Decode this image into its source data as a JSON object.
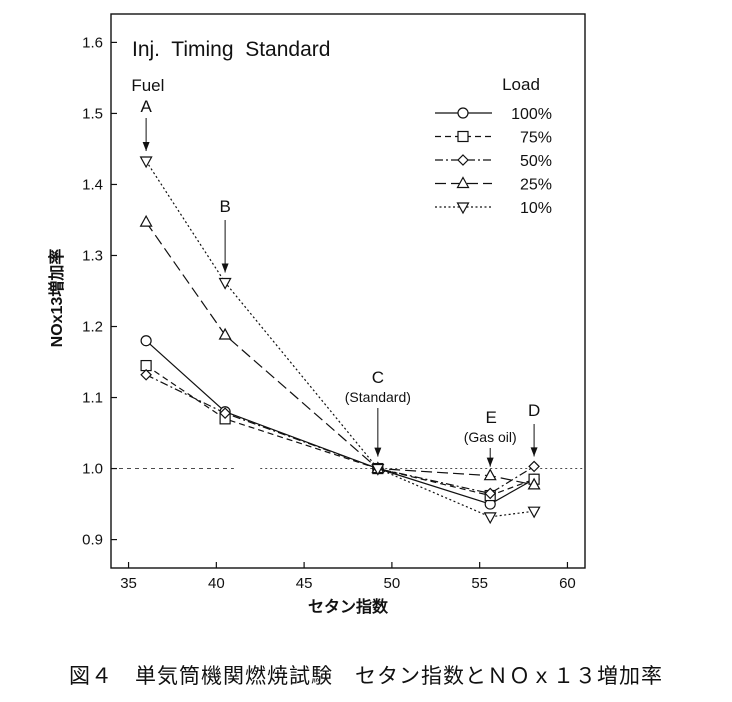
{
  "chart_data": {
    "type": "line",
    "title": "Inj.  Timing  Standard",
    "xlabel": "セタン指数",
    "ylabel": "NOx13増加率",
    "xlim": [
      34,
      61
    ],
    "ylim": [
      0.86,
      1.64
    ],
    "x_ticks": [
      35,
      40,
      45,
      50,
      55,
      60
    ],
    "y_ticks": [
      0.9,
      1.0,
      1.1,
      1.2,
      1.3,
      1.4,
      1.5,
      1.6
    ],
    "x_tick_labels": [
      "35",
      "40",
      "45",
      "50",
      "55",
      "60"
    ],
    "y_tick_labels": [
      "0.9",
      "1.0",
      "1.1",
      "1.2",
      "1.3",
      "1.4",
      "1.5",
      "1.6"
    ],
    "grid": false,
    "reference_line": 1.0,
    "legend_title": "Load",
    "legend_placement": "top-right",
    "series": [
      {
        "name": "100%",
        "marker": "circle",
        "dash": "solid",
        "x": [
          36,
          40.5,
          49.2,
          55.6,
          58.1
        ],
        "y": [
          1.18,
          1.08,
          1.0,
          0.95,
          0.985
        ]
      },
      {
        "name": "75%",
        "marker": "square",
        "dash": "dashed",
        "x": [
          36,
          40.5,
          49.2,
          55.6,
          58.1
        ],
        "y": [
          1.145,
          1.07,
          1.0,
          0.962,
          0.985
        ]
      },
      {
        "name": "50%",
        "marker": "diamond",
        "dash": "dash-dot",
        "x": [
          36,
          40.5,
          49.2,
          55.6,
          58.1
        ],
        "y": [
          1.132,
          1.078,
          1.0,
          0.965,
          1.003
        ]
      },
      {
        "name": "25%",
        "marker": "triangle-up",
        "dash": "long-dash",
        "x": [
          36,
          40.5,
          49.2,
          55.6,
          58.1
        ],
        "y": [
          1.347,
          1.188,
          1.0,
          0.99,
          0.977
        ]
      },
      {
        "name": "10%",
        "marker": "triangle-down",
        "dash": "dotted",
        "x": [
          36,
          40.5,
          49.2,
          55.6,
          58.1
        ],
        "y": [
          1.433,
          1.262,
          1.0,
          0.932,
          0.94
        ]
      }
    ],
    "annotations": [
      {
        "id": "fuel",
        "text": "Fuel"
      },
      {
        "id": "a",
        "text": "A",
        "x": 36,
        "y": 1.433
      },
      {
        "id": "b",
        "text": "B",
        "x": 40.5,
        "y": 1.262
      },
      {
        "id": "c",
        "text": "C",
        "sub": "(Standard)",
        "x": 49.2,
        "y": 1.0
      },
      {
        "id": "e",
        "text": "E",
        "sub": "(Gas oil)",
        "x": 55.6,
        "y": 0.99
      },
      {
        "id": "d",
        "text": "D",
        "x": 58.1,
        "y": 1.003
      }
    ]
  },
  "caption": "図４　単気筒機関燃焼試験　セタン指数とＮＯｘ１３増加率"
}
